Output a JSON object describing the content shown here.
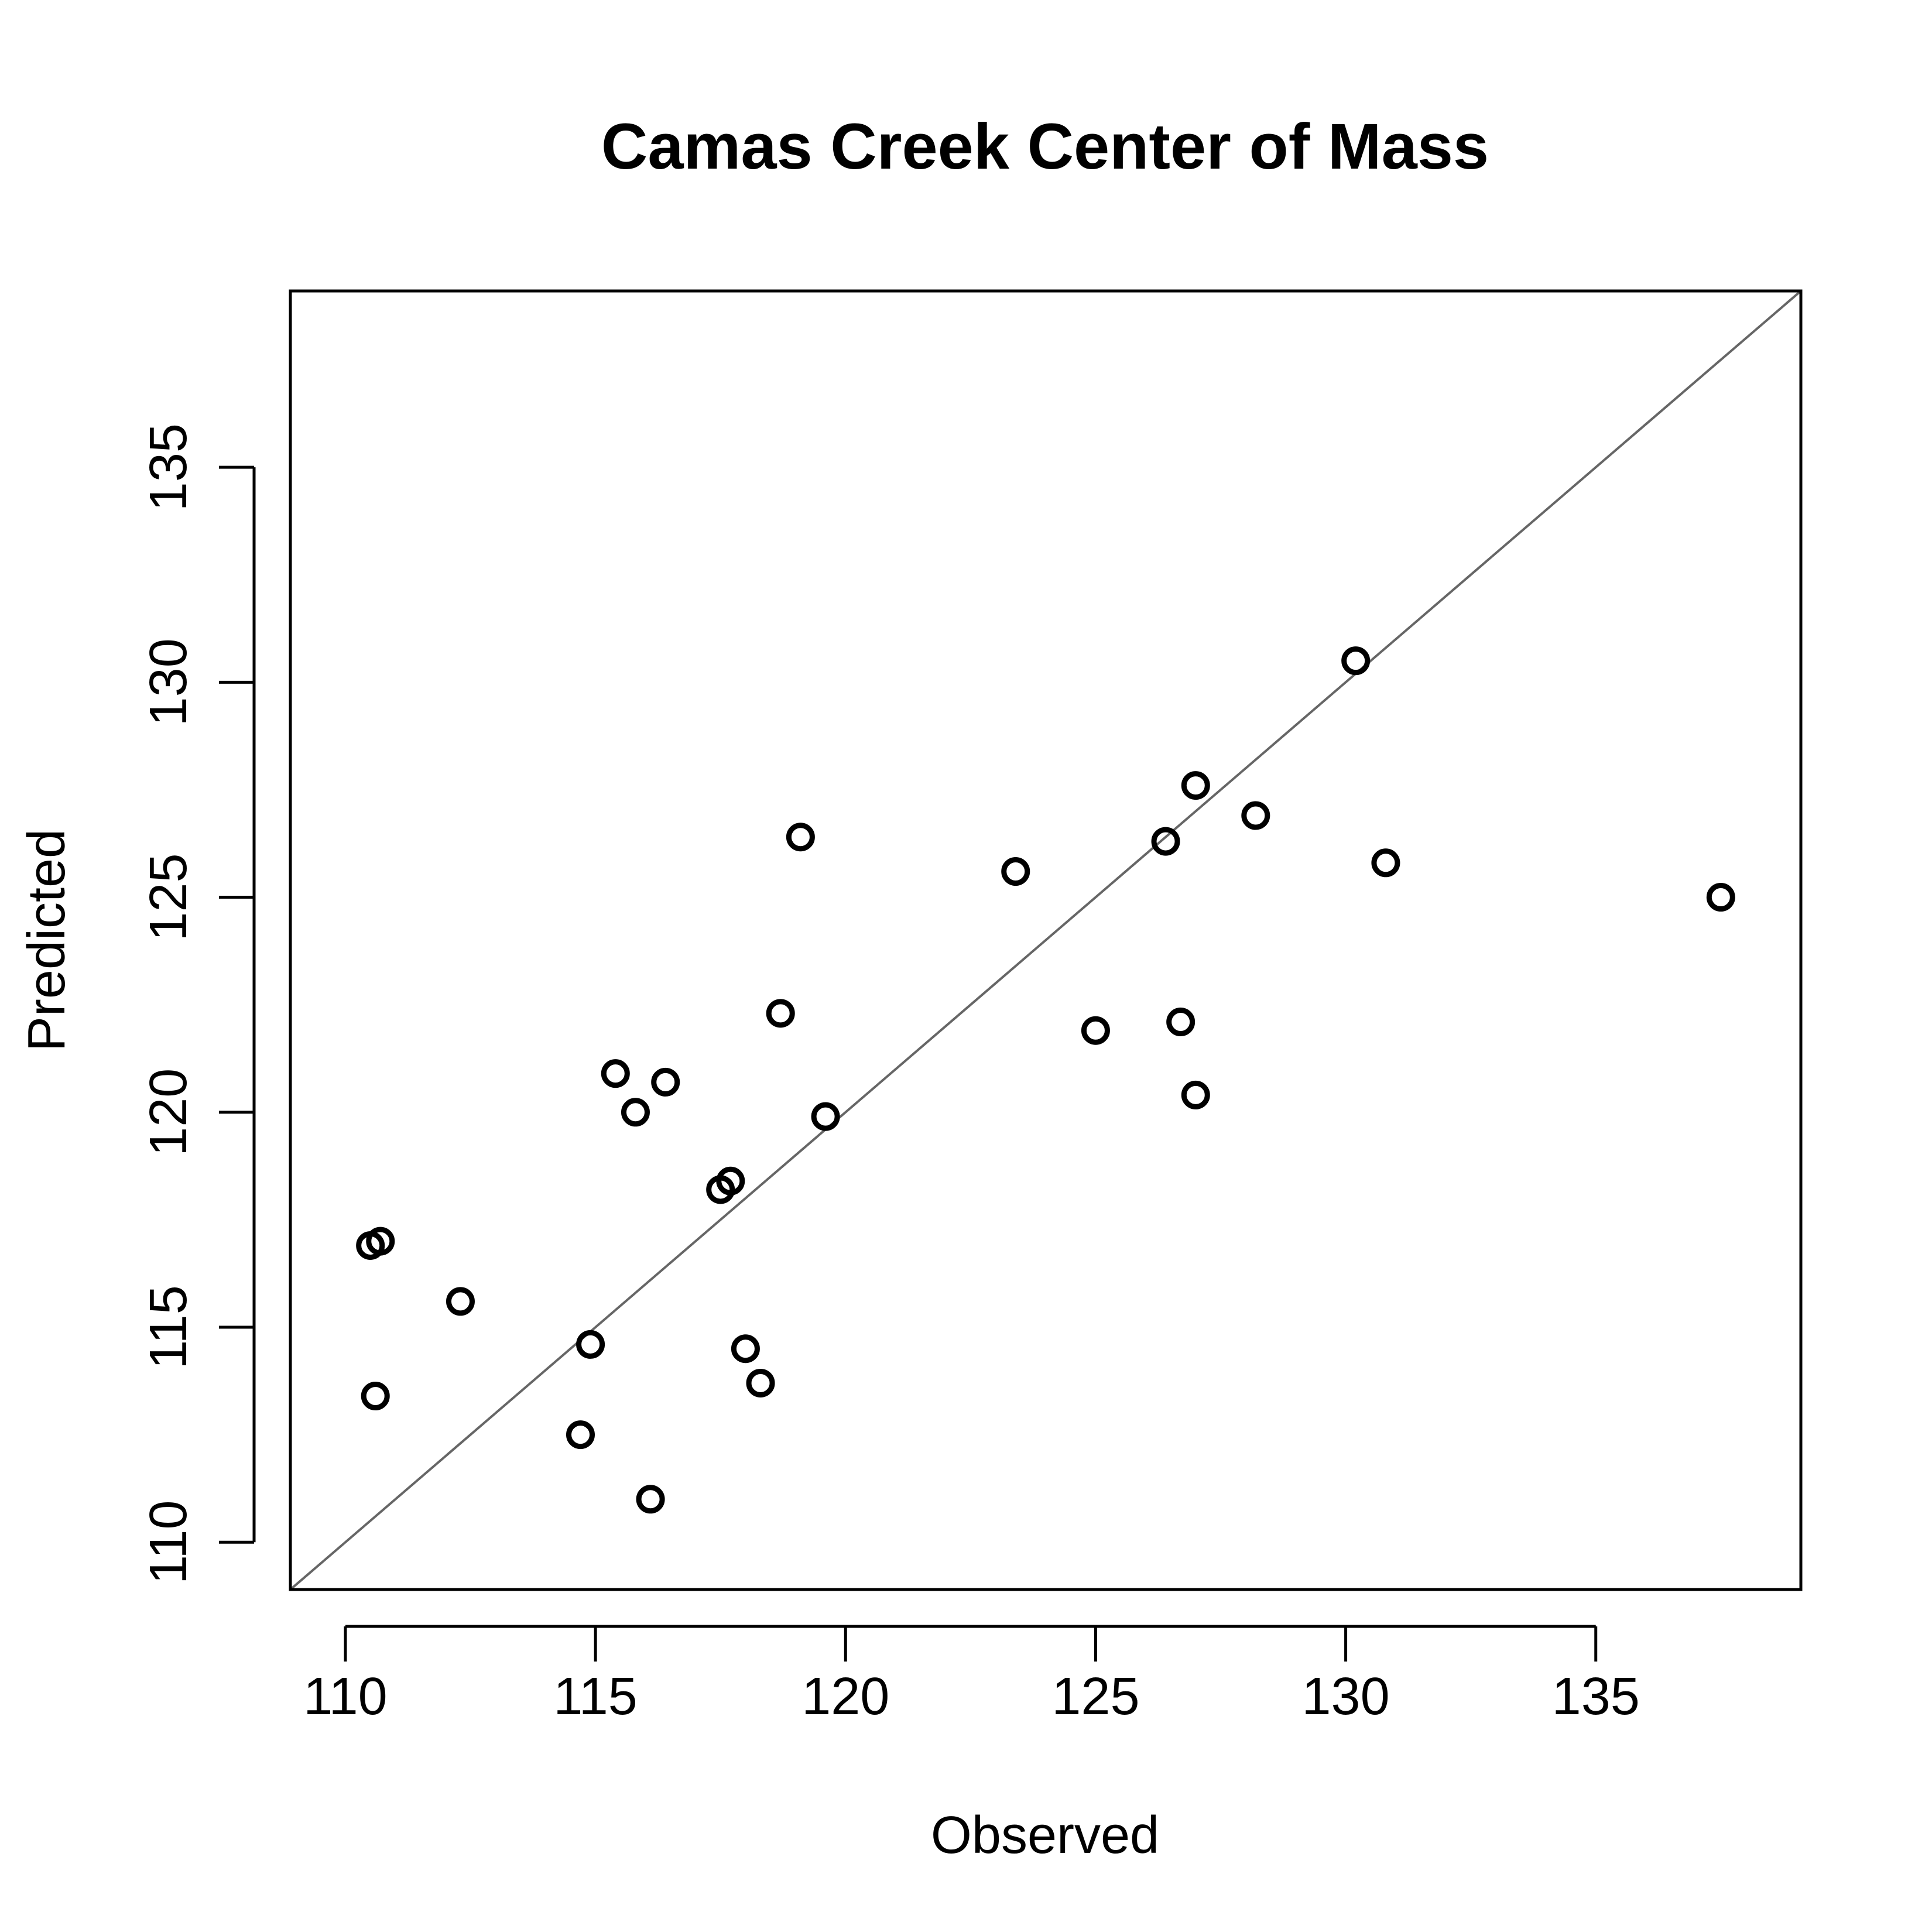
{
  "chart_data": {
    "type": "scatter",
    "title": "Camas Creek Center of Mass",
    "xlabel": "Observed",
    "ylabel": "Predicted",
    "xlim": [
      108.9,
      139.1
    ],
    "ylim": [
      108.9,
      139.1
    ],
    "xticks": [
      110,
      115,
      120,
      125,
      130,
      135
    ],
    "yticks": [
      110,
      115,
      120,
      125,
      130,
      135
    ],
    "reference_line": "y = x",
    "colors": {
      "points": "#000000",
      "reference_line": "#666666",
      "frame": "#000000"
    },
    "points": [
      {
        "x": 110.5,
        "y": 116.9
      },
      {
        "x": 110.7,
        "y": 117.0
      },
      {
        "x": 110.6,
        "y": 113.4
      },
      {
        "x": 112.3,
        "y": 115.6
      },
      {
        "x": 114.7,
        "y": 112.5
      },
      {
        "x": 114.9,
        "y": 114.6
      },
      {
        "x": 115.4,
        "y": 120.9
      },
      {
        "x": 115.8,
        "y": 120.0
      },
      {
        "x": 116.1,
        "y": 111.0
      },
      {
        "x": 116.4,
        "y": 120.7
      },
      {
        "x": 117.5,
        "y": 118.2
      },
      {
        "x": 117.7,
        "y": 118.4
      },
      {
        "x": 118.0,
        "y": 114.5
      },
      {
        "x": 118.3,
        "y": 113.7
      },
      {
        "x": 118.7,
        "y": 122.3
      },
      {
        "x": 119.1,
        "y": 126.4
      },
      {
        "x": 119.6,
        "y": 119.9
      },
      {
        "x": 123.4,
        "y": 125.6
      },
      {
        "x": 125.0,
        "y": 121.9
      },
      {
        "x": 126.4,
        "y": 126.3
      },
      {
        "x": 126.7,
        "y": 122.1
      },
      {
        "x": 127.0,
        "y": 127.6
      },
      {
        "x": 127.0,
        "y": 120.4
      },
      {
        "x": 128.2,
        "y": 126.9
      },
      {
        "x": 130.2,
        "y": 130.5
      },
      {
        "x": 130.8,
        "y": 125.8
      },
      {
        "x": 137.5,
        "y": 125.0
      }
    ]
  }
}
